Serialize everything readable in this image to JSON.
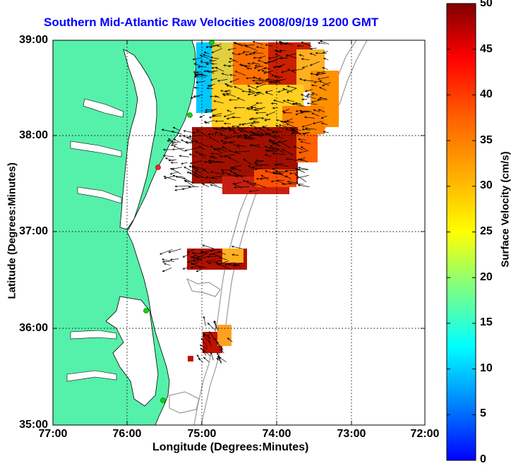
{
  "title": "Southern Mid-Atlantic Raw Velocities 2008/09/19 1200 GMT",
  "x_axis": {
    "label": "Longitude (Degrees:Minutes)",
    "ticks": [
      "77:00",
      "76:00",
      "75:00",
      "74:00",
      "73:00",
      "72:00"
    ]
  },
  "y_axis": {
    "label": "Latitude (Degrees:Minutes)",
    "ticks": [
      "39:00",
      "38:00",
      "37:00",
      "36:00",
      "35:00"
    ]
  },
  "colorbar": {
    "label": "Surface Velocity (cm/s)",
    "ticks": [
      "50",
      "45",
      "40",
      "35",
      "30",
      "25",
      "20",
      "15",
      "10",
      "5",
      "0"
    ],
    "range": [
      0,
      50
    ]
  },
  "chart_data": {
    "type": "heatmap",
    "xlim": [
      -77,
      -72
    ],
    "ylim": [
      35,
      39
    ],
    "grid": true,
    "colormap": "jet",
    "land_color": "#55f0aa",
    "arrow_color": "#000000",
    "station_color": "#00dd00"
  }
}
